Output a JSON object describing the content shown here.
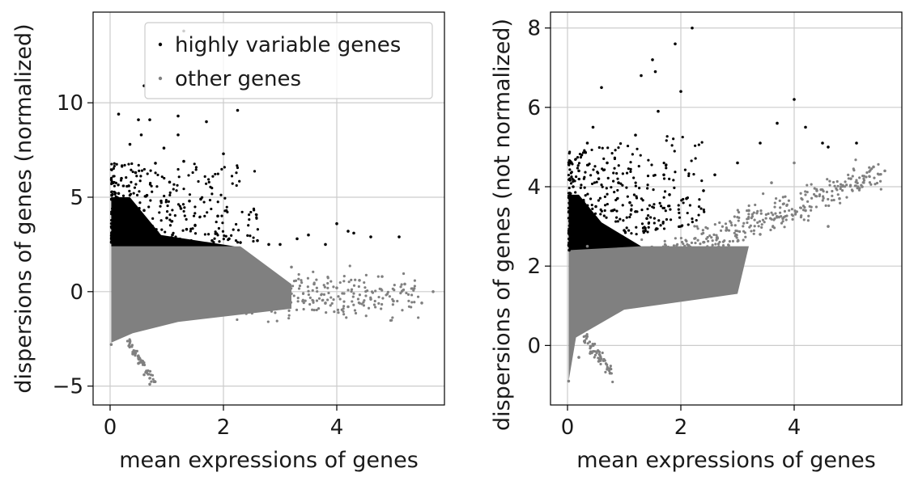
{
  "colors": {
    "highly_variable": "#000000",
    "other": "#808080",
    "grid": "#cccccc",
    "axes": "#000000",
    "legend_border": "#cccccc"
  },
  "legend": {
    "placement": "top-right of left panel",
    "items": [
      {
        "label": "highly variable genes",
        "color": "#000000"
      },
      {
        "label": "other genes",
        "color": "#808080"
      }
    ]
  },
  "chart_data": [
    {
      "type": "scatter",
      "title": "",
      "xlabel": "mean expressions of genes",
      "ylabel": "dispersions of genes (normalized)",
      "xlim": [
        -0.3,
        5.9
      ],
      "ylim": [
        -6.0,
        14.8
      ],
      "xticks": [
        0,
        2,
        4
      ],
      "xtick_labels": [
        "0",
        "2",
        "4"
      ],
      "yticks": [
        -5,
        0,
        5,
        10
      ],
      "ytick_labels": [
        "−5",
        "0",
        "5",
        "10"
      ],
      "grid": true,
      "legend": true,
      "series": [
        {
          "name": "highly variable genes",
          "color": "#000000",
          "points": [
            [
              0.05,
              2.6
            ],
            [
              0.08,
              3.5
            ],
            [
              0.1,
              4.1
            ],
            [
              0.12,
              2.9
            ],
            [
              0.15,
              5.2
            ],
            [
              0.18,
              3.3
            ],
            [
              0.2,
              6.0
            ],
            [
              0.22,
              2.7
            ],
            [
              0.25,
              4.6
            ],
            [
              0.3,
              3.1
            ],
            [
              0.33,
              5.6
            ],
            [
              0.35,
              7.8
            ],
            [
              0.4,
              4.0
            ],
            [
              0.42,
              2.8
            ],
            [
              0.45,
              6.3
            ],
            [
              0.5,
              3.6
            ],
            [
              0.55,
              8.3
            ],
            [
              0.6,
              4.3
            ],
            [
              0.65,
              5.1
            ],
            [
              0.7,
              9.1
            ],
            [
              0.75,
              3.2
            ],
            [
              0.8,
              6.8
            ],
            [
              0.85,
              2.9
            ],
            [
              0.9,
              4.8
            ],
            [
              0.95,
              7.6
            ],
            [
              1.0,
              3.9
            ],
            [
              1.05,
              5.8
            ],
            [
              1.1,
              3.0
            ],
            [
              1.2,
              9.3
            ],
            [
              1.25,
              4.4
            ],
            [
              1.3,
              6.9
            ],
            [
              1.35,
              3.3
            ],
            [
              1.4,
              4.8
            ],
            [
              1.5,
              3.5
            ],
            [
              1.6,
              4.9
            ],
            [
              1.7,
              9.0
            ],
            [
              1.8,
              2.7
            ],
            [
              1.9,
              4.0
            ],
            [
              2.0,
              7.3
            ],
            [
              2.1,
              2.8
            ],
            [
              2.25,
              9.6
            ],
            [
              2.3,
              2.6
            ],
            [
              2.6,
              2.7
            ],
            [
              2.8,
              2.5
            ],
            [
              3.0,
              2.5
            ],
            [
              3.3,
              2.8
            ],
            [
              3.5,
              3.0
            ],
            [
              3.8,
              2.5
            ],
            [
              4.0,
              3.6
            ],
            [
              4.2,
              3.2
            ],
            [
              4.3,
              3.1
            ],
            [
              4.6,
              2.9
            ],
            [
              5.1,
              2.9
            ],
            [
              0.15,
              9.4
            ],
            [
              0.5,
              9.1
            ],
            [
              1.3,
              13.8
            ],
            [
              0.6,
              10.9
            ],
            [
              1.2,
              8.3
            ]
          ]
        },
        {
          "name": "other genes",
          "color": "#808080",
          "points": [
            [
              0.02,
              -2.8
            ],
            [
              0.05,
              1.8
            ],
            [
              0.1,
              -1.5
            ],
            [
              0.15,
              0.9
            ],
            [
              0.2,
              2.2
            ],
            [
              0.25,
              -0.8
            ],
            [
              0.3,
              1.4
            ],
            [
              0.35,
              -2.6
            ],
            [
              0.4,
              -3.3
            ],
            [
              0.45,
              0.3
            ],
            [
              0.5,
              -3.8
            ],
            [
              0.55,
              1.1
            ],
            [
              0.6,
              -4.4
            ],
            [
              0.65,
              -1.2
            ],
            [
              0.7,
              -4.9
            ],
            [
              0.75,
              0.6
            ],
            [
              0.8,
              -1.6
            ],
            [
              0.85,
              2.0
            ],
            [
              0.9,
              -0.5
            ],
            [
              1.0,
              1.5
            ],
            [
              1.1,
              -1.3
            ],
            [
              1.2,
              0.8
            ],
            [
              1.3,
              -0.9
            ],
            [
              1.4,
              1.7
            ],
            [
              1.5,
              -1.1
            ],
            [
              1.6,
              0.4
            ],
            [
              1.7,
              -0.8
            ],
            [
              1.8,
              1.2
            ],
            [
              1.9,
              -0.4
            ],
            [
              2.0,
              0.9
            ],
            [
              2.2,
              -0.6
            ],
            [
              2.4,
              1.0
            ],
            [
              2.6,
              -0.7
            ],
            [
              2.8,
              0.7
            ],
            [
              3.0,
              -0.3
            ],
            [
              3.2,
              1.3
            ],
            [
              3.4,
              -0.5
            ],
            [
              3.6,
              0.4
            ],
            [
              3.8,
              -0.6
            ],
            [
              4.0,
              0.2
            ],
            [
              4.2,
              -0.8
            ],
            [
              4.4,
              0.6
            ],
            [
              4.6,
              -0.4
            ],
            [
              4.8,
              0.8
            ],
            [
              5.0,
              -0.5
            ],
            [
              5.2,
              0.4
            ],
            [
              5.5,
              -0.6
            ],
            [
              5.7,
              0.0
            ]
          ]
        }
      ]
    },
    {
      "type": "scatter",
      "title": "",
      "xlabel": "mean expressions of genes",
      "ylabel": "dispersions of genes (not normalized)",
      "xlim": [
        -0.3,
        5.9
      ],
      "ylim": [
        -1.5,
        8.4
      ],
      "xticks": [
        0,
        2,
        4
      ],
      "xtick_labels": [
        "0",
        "2",
        "4"
      ],
      "yticks": [
        0,
        2,
        4,
        6,
        8
      ],
      "ytick_labels": [
        "0",
        "2",
        "4",
        "6",
        "8"
      ],
      "grid": true,
      "legend": false,
      "series": [
        {
          "name": "highly variable genes",
          "color": "#000000",
          "points": [
            [
              0.03,
              2.4
            ],
            [
              0.06,
              3.3
            ],
            [
              0.1,
              4.0
            ],
            [
              0.12,
              2.6
            ],
            [
              0.15,
              3.7
            ],
            [
              0.2,
              4.4
            ],
            [
              0.22,
              2.9
            ],
            [
              0.25,
              4.8
            ],
            [
              0.3,
              3.2
            ],
            [
              0.35,
              5.1
            ],
            [
              0.4,
              2.8
            ],
            [
              0.45,
              5.5
            ],
            [
              0.5,
              3.5
            ],
            [
              0.55,
              4.2
            ],
            [
              0.6,
              6.5
            ],
            [
              0.65,
              3.0
            ],
            [
              0.7,
              4.6
            ],
            [
              0.8,
              3.4
            ],
            [
              0.9,
              4.1
            ],
            [
              1.0,
              2.9
            ],
            [
              1.1,
              3.6
            ],
            [
              1.2,
              5.3
            ],
            [
              1.3,
              6.8
            ],
            [
              1.4,
              3.2
            ],
            [
              1.5,
              7.2
            ],
            [
              1.55,
              6.9
            ],
            [
              1.6,
              5.9
            ],
            [
              1.7,
              4.3
            ],
            [
              1.8,
              3.8
            ],
            [
              1.9,
              7.6
            ],
            [
              2.0,
              6.4
            ],
            [
              2.1,
              3.7
            ],
            [
              2.2,
              8.0
            ],
            [
              2.4,
              3.9
            ],
            [
              2.6,
              4.3
            ],
            [
              3.0,
              4.6
            ],
            [
              3.4,
              5.1
            ],
            [
              3.7,
              5.6
            ],
            [
              4.0,
              6.2
            ],
            [
              4.2,
              5.5
            ],
            [
              4.5,
              5.1
            ],
            [
              4.6,
              5.0
            ],
            [
              5.1,
              5.1
            ]
          ]
        },
        {
          "name": "other genes",
          "color": "#808080",
          "points": [
            [
              0.02,
              -0.9
            ],
            [
              0.05,
              1.2
            ],
            [
              0.1,
              0.4
            ],
            [
              0.15,
              2.1
            ],
            [
              0.2,
              -0.3
            ],
            [
              0.25,
              1.7
            ],
            [
              0.3,
              0.1
            ],
            [
              0.35,
              2.5
            ],
            [
              0.4,
              -0.2
            ],
            [
              0.5,
              1.4
            ],
            [
              0.55,
              -0.4
            ],
            [
              0.6,
              1.9
            ],
            [
              0.7,
              -0.6
            ],
            [
              0.75,
              -0.7
            ],
            [
              0.8,
              1.3
            ],
            [
              0.9,
              2.2
            ],
            [
              1.0,
              1.1
            ],
            [
              1.2,
              1.8
            ],
            [
              1.4,
              1.3
            ],
            [
              1.6,
              2.1
            ],
            [
              1.8,
              1.6
            ],
            [
              2.0,
              2.3
            ],
            [
              2.2,
              1.8
            ],
            [
              2.4,
              2.6
            ],
            [
              2.6,
              2.2
            ],
            [
              2.8,
              2.9
            ],
            [
              3.0,
              2.4
            ],
            [
              3.2,
              3.4
            ],
            [
              3.4,
              2.8
            ],
            [
              3.6,
              4.1
            ],
            [
              3.8,
              3.2
            ],
            [
              4.0,
              4.6
            ],
            [
              4.2,
              3.4
            ],
            [
              4.4,
              3.9
            ],
            [
              4.6,
              3.0
            ],
            [
              4.8,
              3.7
            ],
            [
              5.0,
              4.2
            ],
            [
              5.2,
              4.0
            ],
            [
              5.4,
              4.5
            ],
            [
              5.6,
              4.4
            ]
          ]
        }
      ]
    }
  ]
}
